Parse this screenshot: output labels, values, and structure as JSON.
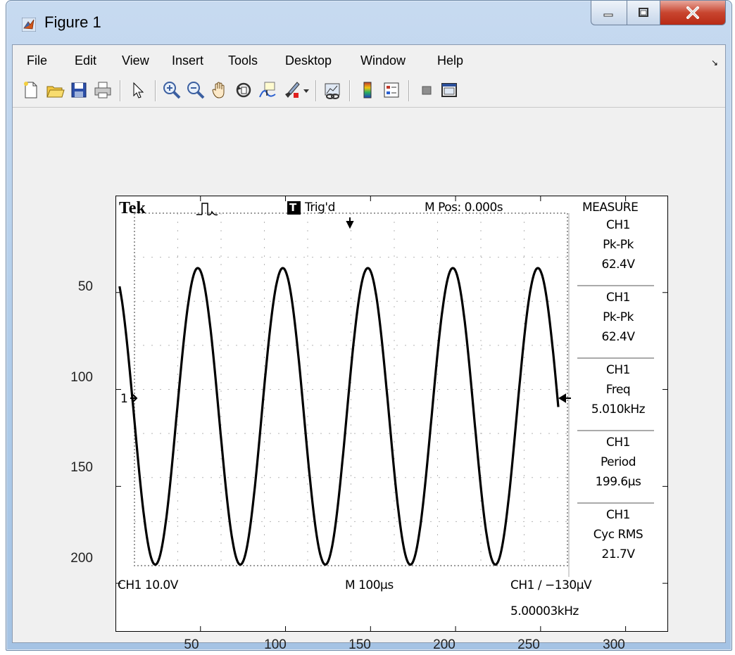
{
  "window": {
    "title": "Figure 1"
  },
  "menu": {
    "items": [
      {
        "label": "File"
      },
      {
        "label": "Edit"
      },
      {
        "label": "View"
      },
      {
        "label": "Insert"
      },
      {
        "label": "Tools"
      },
      {
        "label": "Desktop"
      },
      {
        "label": "Window"
      },
      {
        "label": "Help"
      }
    ],
    "dock_arrow": "↘"
  },
  "toolbar": {
    "buttons": [
      {
        "icon": "new-figure-icon"
      },
      {
        "icon": "open-file-icon"
      },
      {
        "icon": "save-icon"
      },
      {
        "icon": "print-icon"
      },
      {
        "icon": "edit-plot-arrow-icon"
      },
      {
        "icon": "zoom-in-icon"
      },
      {
        "icon": "zoom-out-icon"
      },
      {
        "icon": "pan-hand-icon"
      },
      {
        "icon": "rotate-3d-icon"
      },
      {
        "icon": "data-cursor-icon"
      },
      {
        "icon": "brush-icon"
      },
      {
        "icon": "brush-dropdown-icon"
      },
      {
        "icon": "link-plot-icon"
      },
      {
        "icon": "colorbar-icon"
      },
      {
        "icon": "legend-icon"
      },
      {
        "icon": "hide-plot-tools-icon"
      },
      {
        "icon": "show-plot-tools-icon"
      }
    ]
  },
  "axes": {
    "yticks": [
      "50",
      "100",
      "150",
      "200"
    ],
    "xticks": [
      "50",
      "100",
      "150",
      "200",
      "250",
      "300"
    ]
  },
  "scope": {
    "brand": "Tek",
    "trigger_state": "Trig'd",
    "trigger_badge": "T",
    "position": "M Pos: 0.000s",
    "measure_title": "MEASURE",
    "ch1_scale": "CH1  10.0V",
    "timebase": "M 100µs",
    "trigger_level": "CH1 ∕ −130µV",
    "trigger_freq": "5.00003kHz",
    "channel_marker": "1",
    "measurements": [
      {
        "source": "CH1",
        "name": "Pk-Pk",
        "value": "62.4V"
      },
      {
        "source": "CH1",
        "name": "Pk-Pk",
        "value": "62.4V"
      },
      {
        "source": "CH1",
        "name": "Freq",
        "value": "5.010kHz"
      },
      {
        "source": "CH1",
        "name": "Period",
        "value": "199.6µs"
      },
      {
        "source": "CH1",
        "name": "Cyc RMS",
        "value": "21.7V"
      }
    ]
  },
  "chart_data": {
    "type": "line",
    "description_source": "image of oscilloscope waveform displayed in figure axes",
    "series": [
      {
        "values": "sine wave, 5 cycles",
        "period_x": 50,
        "peaks_x": [
          48,
          98,
          148,
          198,
          248
        ],
        "troughs_x": [
          23,
          73,
          123,
          173,
          223
        ],
        "peak_y": 37,
        "trough_y": 190
      }
    ],
    "xlim": [
      0,
      325
    ],
    "ylim": [
      225,
      0
    ],
    "y_axis_direction": "downward (image coordinates)",
    "grid": false
  }
}
